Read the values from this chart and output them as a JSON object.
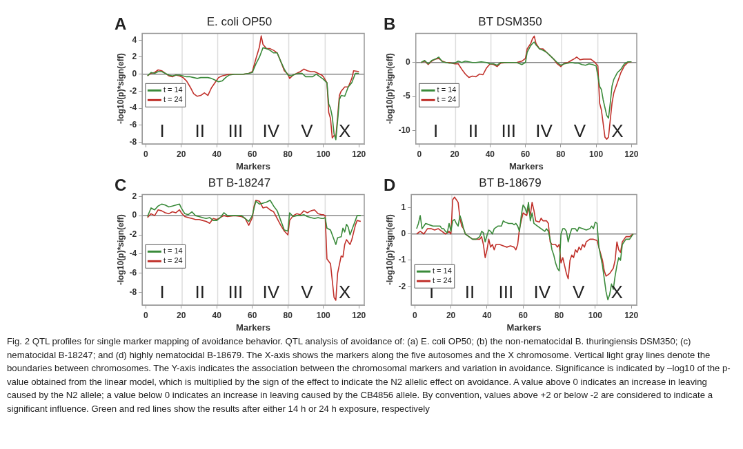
{
  "chart_data": [
    {
      "type": "line",
      "title": "E. coli OP50",
      "xlabel": "Markers",
      "ylabel": "-log10(p)*sign(eff)",
      "xlim": [
        -2,
        123
      ],
      "xticks": [
        0,
        20,
        40,
        60,
        80,
        100,
        120
      ],
      "ylim": [
        -8.2,
        4.8
      ],
      "yticks": [
        -8,
        -6,
        -4,
        -2,
        0,
        2,
        4
      ],
      "legend": "left",
      "marker": "none",
      "line_style": "solid",
      "grid": false,
      "ref_lines": [
        {
          "axis": "x",
          "value": 20.5,
          "color": "#dddddd"
        },
        {
          "axis": "x",
          "value": 40.5,
          "color": "#dddddd"
        },
        {
          "axis": "x",
          "value": 60.5,
          "color": "#dddddd"
        },
        {
          "axis": "x",
          "value": 80.5,
          "color": "#dddddd"
        },
        {
          "axis": "x",
          "value": 101,
          "color": "#dddddd"
        },
        {
          "axis": "y",
          "value": 0,
          "color": "#888888"
        }
      ],
      "annotations": [
        "A",
        "I",
        "II",
        "III",
        "IV",
        "V",
        "X"
      ],
      "series": [
        {
          "name": "t = 14",
          "color": "#3a8a3a",
          "x": [
            1,
            3,
            5,
            7,
            9,
            11,
            13,
            15,
            17,
            19,
            21,
            23,
            25,
            27,
            29,
            31,
            33,
            35,
            37,
            39,
            41,
            43,
            45,
            47,
            50,
            55,
            58,
            60,
            62,
            64,
            66,
            68,
            70,
            72,
            74,
            76,
            78,
            80,
            82,
            84,
            86,
            88,
            90,
            92,
            94,
            96,
            98,
            100,
            102,
            103,
            104,
            105,
            106,
            107,
            108,
            109,
            110,
            112,
            114,
            116,
            118,
            120
          ],
          "values": [
            -0.2,
            0.2,
            0.1,
            0.3,
            0.3,
            0.1,
            -0.1,
            -0.2,
            -0.1,
            -0.1,
            -0.2,
            -0.3,
            -0.3,
            -0.4,
            -0.5,
            -0.4,
            -0.4,
            -0.4,
            -0.5,
            -0.7,
            -0.9,
            -0.8,
            -0.4,
            -0.1,
            0,
            0,
            0.1,
            0.2,
            1.2,
            2.0,
            3.1,
            3.0,
            2.8,
            2.5,
            2.5,
            1.5,
            0.6,
            -0.1,
            -0.2,
            0,
            0.1,
            0.1,
            -0.3,
            -0.3,
            -0.3,
            0,
            -0.3,
            -0.6,
            -1.0,
            -3.5,
            -4.0,
            -5.0,
            -7.0,
            -7.7,
            -5.5,
            -3.0,
            -2.5,
            -2.6,
            -1.5,
            -1.0,
            0.1,
            0.1
          ]
        },
        {
          "name": "t = 24",
          "color": "#c0302a",
          "x": [
            1,
            3,
            5,
            7,
            9,
            11,
            13,
            15,
            17,
            19,
            21,
            23,
            25,
            27,
            29,
            31,
            33,
            35,
            37,
            39,
            41,
            43,
            45,
            47,
            50,
            55,
            58,
            60,
            62,
            64,
            65,
            66,
            68,
            70,
            72,
            74,
            76,
            78,
            80,
            81,
            83,
            85,
            87,
            89,
            91,
            93,
            95,
            97,
            99,
            100,
            102,
            103,
            104,
            105,
            106,
            107,
            108,
            109,
            110,
            112,
            114,
            116,
            117,
            120
          ],
          "values": [
            -0.2,
            0.1,
            0.2,
            0.5,
            0.4,
            0.1,
            -0.2,
            -0.3,
            -0.1,
            -0.2,
            -0.4,
            -0.8,
            -1.5,
            -2.3,
            -2.6,
            -2.5,
            -2.2,
            -2.5,
            -1.6,
            -1.0,
            -0.4,
            -0.2,
            -0.1,
            0,
            0,
            0,
            0.1,
            0.3,
            1.8,
            3.2,
            4.5,
            3.5,
            3.0,
            3.0,
            2.8,
            2.5,
            1.5,
            0.4,
            0,
            -0.5,
            -0.1,
            0.1,
            0.3,
            0.6,
            0.4,
            0.3,
            0.3,
            0.1,
            -0.1,
            -0.3,
            -1.0,
            -4.5,
            -5.2,
            -7.5,
            -7.2,
            -7.4,
            -5.0,
            -2.5,
            -2.0,
            -1.5,
            -1.5,
            -0.5,
            0.4,
            0.3
          ]
        }
      ]
    },
    {
      "type": "line",
      "title": "BT DSM350",
      "xlabel": "Markers",
      "ylabel": "-log10(p)*sign(eff)",
      "xlim": [
        -2,
        123
      ],
      "xticks": [
        0,
        20,
        40,
        60,
        80,
        100,
        120
      ],
      "ylim": [
        -12,
        4.3
      ],
      "yticks": [
        -10,
        -5,
        0
      ],
      "legend": "left",
      "marker": "none",
      "line_style": "solid",
      "grid": false,
      "ref_lines": [
        {
          "axis": "x",
          "value": 20.5,
          "color": "#dddddd"
        },
        {
          "axis": "x",
          "value": 40.5,
          "color": "#dddddd"
        },
        {
          "axis": "x",
          "value": 60.5,
          "color": "#dddddd"
        },
        {
          "axis": "x",
          "value": 80.5,
          "color": "#dddddd"
        },
        {
          "axis": "x",
          "value": 101,
          "color": "#dddddd"
        },
        {
          "axis": "y",
          "value": 0,
          "color": "#888888"
        }
      ],
      "annotations": [
        "B",
        "I",
        "II",
        "III",
        "IV",
        "V",
        "X"
      ],
      "series": [
        {
          "name": "t = 14",
          "color": "#3a8a3a",
          "x": [
            1,
            3,
            5,
            7,
            9,
            11,
            13,
            15,
            17,
            20,
            22,
            24,
            26,
            28,
            30,
            32,
            35,
            38,
            40,
            42,
            44,
            46,
            50,
            55,
            58,
            60,
            61,
            63,
            64,
            65,
            66,
            68,
            70,
            72,
            74,
            76,
            78,
            80,
            82,
            84,
            86,
            88,
            90,
            92,
            94,
            96,
            98,
            100,
            102,
            103,
            104,
            106,
            107,
            108,
            109,
            110,
            112,
            114,
            116,
            118,
            120
          ],
          "values": [
            0,
            0.3,
            -0.2,
            0.3,
            0.5,
            0.8,
            0.1,
            0,
            -0.1,
            -0.1,
            0.2,
            0,
            0.2,
            0.1,
            0,
            0,
            0.1,
            0,
            -0.2,
            -0.2,
            -0.4,
            0,
            0,
            0,
            -0.3,
            0,
            1.5,
            2.5,
            2.8,
            3.0,
            2.6,
            2.0,
            1.8,
            1.5,
            1.0,
            0.5,
            0,
            -0.4,
            -0.2,
            -0.1,
            0,
            -0.1,
            -0.1,
            -0.3,
            -0.4,
            -0.2,
            -0.3,
            -0.5,
            -3.5,
            -4.0,
            -5.5,
            -7.8,
            -8.2,
            -6.0,
            -3.5,
            -2.5,
            -1.5,
            -1.0,
            -0.2,
            0.1,
            0.1
          ]
        },
        {
          "name": "t = 24",
          "color": "#c0302a",
          "x": [
            1,
            3,
            5,
            7,
            9,
            11,
            13,
            15,
            17,
            20,
            22,
            24,
            26,
            28,
            30,
            32,
            34,
            36,
            38,
            40,
            42,
            44,
            46,
            50,
            55,
            58,
            60,
            61,
            63,
            64,
            65,
            66,
            68,
            70,
            72,
            74,
            76,
            78,
            80,
            82,
            84,
            86,
            88,
            89,
            91,
            93,
            95,
            97,
            99,
            100,
            101,
            102,
            103,
            104,
            105,
            106,
            107,
            108,
            109,
            110,
            112,
            114,
            116,
            118,
            120
          ],
          "values": [
            0,
            0.2,
            -0.3,
            0.2,
            0.5,
            0.6,
            0.2,
            0,
            0,
            -0.2,
            -0.2,
            -1.0,
            -1.7,
            -2.2,
            -2.0,
            -2.1,
            -1.7,
            -1.8,
            -0.8,
            -0.2,
            -0.3,
            -0.6,
            -0.1,
            0,
            0,
            0.2,
            0.6,
            2.0,
            2.8,
            3.5,
            3.9,
            2.8,
            2.0,
            2.0,
            1.5,
            1.0,
            0.5,
            -0.2,
            -0.6,
            -0.1,
            0,
            0.3,
            0.6,
            0.8,
            0.4,
            0.5,
            0.5,
            0.5,
            0.1,
            -0.2,
            -0.5,
            -6.0,
            -7.0,
            -9.0,
            -11.0,
            -11.3,
            -11.0,
            -8.5,
            -6.0,
            -4.5,
            -3.0,
            -1.5,
            -0.5,
            0,
            0.1
          ]
        }
      ]
    },
    {
      "type": "line",
      "title": "BT B-18247",
      "xlabel": "Markers",
      "ylabel": "-log10(p)*sign(eff)",
      "xlim": [
        -2,
        123
      ],
      "xticks": [
        0,
        20,
        40,
        60,
        80,
        100,
        120
      ],
      "ylim": [
        -9.3,
        2.2
      ],
      "yticks": [
        -8,
        -6,
        -4,
        -2,
        0,
        2
      ],
      "legend": "left",
      "marker": "none",
      "line_style": "solid",
      "grid": false,
      "ref_lines": [
        {
          "axis": "x",
          "value": 20.5,
          "color": "#dddddd"
        },
        {
          "axis": "x",
          "value": 40.5,
          "color": "#dddddd"
        },
        {
          "axis": "x",
          "value": 60.5,
          "color": "#dddddd"
        },
        {
          "axis": "x",
          "value": 80.5,
          "color": "#dddddd"
        },
        {
          "axis": "x",
          "value": 101,
          "color": "#dddddd"
        },
        {
          "axis": "y",
          "value": 0,
          "color": "#888888"
        }
      ],
      "annotations": [
        "C",
        "I",
        "II",
        "III",
        "IV",
        "V",
        "X"
      ],
      "series": [
        {
          "name": "t = 14",
          "color": "#3a8a3a",
          "x": [
            1,
            3,
            5,
            7,
            9,
            11,
            13,
            15,
            17,
            19,
            20,
            22,
            24,
            26,
            28,
            30,
            32,
            34,
            36,
            38,
            40,
            42,
            44,
            46,
            50,
            54,
            56,
            58,
            60,
            61,
            62,
            64,
            66,
            68,
            70,
            72,
            74,
            76,
            78,
            80,
            81,
            83,
            85,
            87,
            89,
            91,
            93,
            95,
            97,
            99,
            100,
            101,
            102,
            104,
            106,
            107,
            108,
            110,
            111,
            112,
            113,
            114,
            115,
            116,
            118,
            119,
            121
          ],
          "values": [
            -0.1,
            0.8,
            0.6,
            1.0,
            1.2,
            1.1,
            0.9,
            1.0,
            1.1,
            1.2,
            0.8,
            0.2,
            0.1,
            0.4,
            0,
            -0.1,
            -0.2,
            -0.3,
            -0.2,
            -0.5,
            -0.5,
            -0.2,
            0.3,
            0,
            0,
            0,
            -0.3,
            -0.6,
            0,
            0.8,
            1.5,
            1.2,
            1.3,
            1.4,
            1.6,
            1.0,
            0.5,
            -0.5,
            -1.5,
            -1.6,
            0.3,
            -0.1,
            0,
            0,
            0.1,
            -0.1,
            -0.2,
            -0.3,
            -0.2,
            -0.3,
            -0.3,
            -0.2,
            -1.3,
            -1.5,
            -2.5,
            -3.0,
            -2.3,
            -2.2,
            -1.3,
            -1.7,
            -0.9,
            -1.2,
            -2.0,
            -1.5,
            -0.5,
            0,
            0
          ]
        },
        {
          "name": "t = 24",
          "color": "#c0302a",
          "x": [
            1,
            3,
            5,
            7,
            9,
            11,
            13,
            15,
            17,
            19,
            20,
            22,
            24,
            26,
            28,
            30,
            32,
            34,
            36,
            38,
            40,
            42,
            44,
            46,
            50,
            54,
            56,
            58,
            60,
            61,
            62,
            64,
            66,
            68,
            70,
            72,
            74,
            76,
            78,
            80,
            81,
            83,
            85,
            87,
            89,
            91,
            93,
            95,
            97,
            99,
            100,
            101,
            102,
            104,
            106,
            107,
            108,
            110,
            111,
            112,
            113,
            115,
            116,
            118,
            119,
            121
          ],
          "values": [
            -0.2,
            0.2,
            0.0,
            0.6,
            0.5,
            0.3,
            0.2,
            0.4,
            0.3,
            0.6,
            0.3,
            -0.1,
            -0.2,
            -0.3,
            -0.4,
            -0.4,
            -0.5,
            -0.6,
            -0.8,
            -0.3,
            -0.4,
            -0.2,
            0,
            -0.1,
            0,
            -0.1,
            -0.3,
            -1.0,
            -0.2,
            1.0,
            1.6,
            1.5,
            0.8,
            0.9,
            0.6,
            0.4,
            -0.3,
            -1.0,
            -1.6,
            -2.0,
            -0.5,
            0,
            0.2,
            0.1,
            0.5,
            0.3,
            0.5,
            0.6,
            0.2,
            0.1,
            0.1,
            0,
            -4.5,
            -5.0,
            -8.5,
            -8.8,
            -6.0,
            -4.2,
            -4.3,
            -3.0,
            -2.5,
            -3.0,
            -2.5,
            -1.0,
            -0.5,
            -0.6
          ]
        }
      ]
    },
    {
      "type": "line",
      "title": "BT B-18679",
      "xlabel": "Markers",
      "ylabel": "-log10(p)*sign(eff)",
      "xlim": [
        -2,
        123
      ],
      "xticks": [
        0,
        20,
        40,
        60,
        80,
        100,
        120
      ],
      "ylim": [
        -2.7,
        1.5
      ],
      "yticks": [
        -2,
        -1,
        0,
        1
      ],
      "legend": "bottom left",
      "marker": "none",
      "line_style": "solid",
      "grid": false,
      "ref_lines": [
        {
          "axis": "x",
          "value": 20.5,
          "color": "#dddddd"
        },
        {
          "axis": "x",
          "value": 40.5,
          "color": "#dddddd"
        },
        {
          "axis": "x",
          "value": 60.5,
          "color": "#dddddd"
        },
        {
          "axis": "x",
          "value": 80.5,
          "color": "#dddddd"
        },
        {
          "axis": "x",
          "value": 101,
          "color": "#dddddd"
        },
        {
          "axis": "y",
          "value": 0,
          "color": "#888888"
        }
      ],
      "annotations": [
        "D",
        "I",
        "II",
        "III",
        "IV",
        "V",
        "X",
        "Fig. 2 QTL profiles for single marker mapping of avoidance behavior. QTL analysis of avoidance of: (a) E. coli OP50; (b) the non-nematocidal B. thuringiensis DSM350; (c) nematocidal B-18247; and (d) highly nematocidal B-18679. The X-axis shows the markers along the five autosomes and the X chromosome. Vertical light gray lines denote the boundaries between chromosomes. The Y-axis indicates the association between the chromosomal markers and variation in avoidance. Significance is indicated by –log10 of the p-value obtained from the linear model, which is multiplied by the sign of the effect to indicate the N2 allelic effect on avoidance. A value above 0 indicates an increase in leaving caused by the N2 allele; a value below 0 indicates an increase in leaving caused by the CB4856 allele. By convention, values above +2 or below -2 are considered to indicate a significant influence. Green and red lines show the results after either 14 h or 24 h exposure, respectively"
      ],
      "series": [
        {
          "name": "t = 14",
          "color": "#3a8a3a",
          "x": [
            1,
            2,
            3,
            4,
            5,
            6,
            8,
            10,
            12,
            14,
            15,
            16,
            17,
            18,
            19,
            20,
            21,
            22,
            23,
            24,
            25,
            26,
            27,
            28,
            30,
            32,
            34,
            36,
            37,
            38,
            39,
            40,
            41,
            42,
            43,
            44,
            46,
            48,
            49,
            50,
            52,
            54,
            55,
            56,
            57,
            58,
            59,
            60,
            61,
            62,
            63,
            64,
            65,
            66,
            68,
            70,
            72,
            73,
            74,
            75,
            76,
            77,
            78,
            79,
            80,
            81,
            82,
            83,
            84,
            85,
            86,
            87,
            89,
            90,
            91,
            93,
            95,
            97,
            98,
            99,
            100,
            101,
            102,
            104,
            106,
            107,
            108,
            109,
            110,
            111,
            112,
            113,
            114,
            115,
            117,
            119,
            121
          ],
          "values": [
            0.2,
            0.4,
            0.7,
            0.2,
            0.3,
            0.4,
            0.35,
            0.3,
            0.3,
            0.3,
            0.2,
            0.2,
            0.1,
            0.05,
            0.4,
            0.1,
            0.5,
            0.55,
            0.4,
            0.3,
            0.7,
            0.5,
            0.2,
            0,
            -0.1,
            -0.2,
            -0.2,
            -0.1,
            0.1,
            0.05,
            -0.3,
            -0.05,
            0.15,
            0.1,
            0,
            0.2,
            0.3,
            0.3,
            0.5,
            0.45,
            0.4,
            0.4,
            0.35,
            0.4,
            0.3,
            0.1,
            0.7,
            1.1,
            1.0,
            0.8,
            1.2,
            0.5,
            0.8,
            0.4,
            0.3,
            0.2,
            0.1,
            0.2,
            0.1,
            -0.2,
            -0.6,
            -0.8,
            -1.1,
            -1.3,
            -1.4,
            0,
            0.2,
            0.2,
            0.1,
            -0.3,
            0,
            0.2,
            0.2,
            0.1,
            0.25,
            0.2,
            0.15,
            0.2,
            0.3,
            0.2,
            0.45,
            0.4,
            -0.5,
            -1.2,
            -2.2,
            -2.5,
            -2.3,
            -1.9,
            -2.1,
            -1.6,
            -1.2,
            -0.9,
            -1.0,
            -0.4,
            -0.2,
            -0.2,
            0
          ]
        },
        {
          "name": "t = 24",
          "color": "#c0302a",
          "x": [
            1,
            3,
            5,
            7,
            9,
            11,
            13,
            15,
            17,
            19,
            20,
            21,
            22,
            23,
            24,
            25,
            26,
            27,
            28,
            30,
            32,
            34,
            36,
            37,
            38,
            39,
            40,
            41,
            42,
            43,
            44,
            45,
            47,
            49,
            51,
            53,
            55,
            56,
            57,
            58,
            59,
            60,
            62,
            63,
            64,
            65,
            66,
            67,
            69,
            70,
            71,
            73,
            74,
            75,
            76,
            78,
            79,
            80,
            81,
            82,
            83,
            84,
            85,
            86,
            87,
            88,
            89,
            90,
            91,
            92,
            93,
            94,
            95,
            97,
            99,
            101,
            102,
            104,
            105,
            106,
            107,
            108,
            110,
            111,
            112,
            113,
            114,
            115,
            117,
            119,
            121
          ],
          "values": [
            0,
            0.1,
            0.0,
            0.2,
            0.2,
            0.15,
            0.2,
            0.1,
            0.0,
            0.1,
            0,
            1.3,
            1.4,
            1.3,
            1.2,
            0.6,
            0.3,
            0.2,
            0,
            -0.1,
            -0.2,
            -0.2,
            -0.2,
            -0.1,
            -0.4,
            -0.9,
            -0.6,
            -0.2,
            -0.5,
            -0.4,
            -0.6,
            -0.4,
            -0.4,
            -0.45,
            -0.5,
            -0.45,
            -0.5,
            -0.6,
            -0.4,
            0.2,
            0.5,
            0.8,
            0.7,
            1.0,
            0.7,
            1.2,
            0.9,
            0.5,
            0.45,
            0.6,
            0.5,
            0.5,
            0.4,
            -0.3,
            -0.4,
            -0.4,
            -0.5,
            -0.4,
            -1.1,
            -0.9,
            -1.2,
            -1.5,
            -1.7,
            -1.0,
            -0.8,
            -0.9,
            -0.6,
            -0.7,
            -0.5,
            -0.6,
            -0.4,
            -0.5,
            -0.3,
            -0.2,
            -0.2,
            -0.25,
            -0.5,
            -1.0,
            -1.4,
            -1.6,
            -1.55,
            -1.5,
            -1.3,
            -1.0,
            -0.3,
            -0.6,
            -0.7,
            -0.3,
            -0.1,
            -0.1,
            0
          ]
        }
      ]
    }
  ]
}
